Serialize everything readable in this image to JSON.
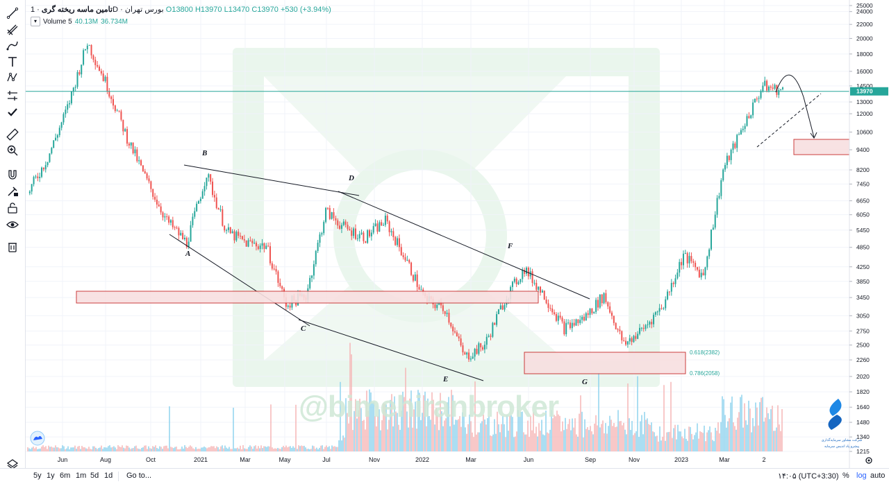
{
  "header": {
    "symbol": "تامین ماسه ریخته گری",
    "interval": "1D",
    "exchange": "بورس تهران",
    "ohlc": {
      "o": "O13800",
      "h": "H13970",
      "l": "L13470",
      "c": "C13970",
      "chg": "+530 (+3.94%)"
    }
  },
  "volume_row": {
    "label": "Volume 5",
    "v1": "40.13M",
    "v2": "36.734M"
  },
  "colors": {
    "up": "#26a69a",
    "down": "#ef5350",
    "last_price": "#26a69a",
    "zone_fill": "#f8dfe0",
    "zone_stroke": "#c62828"
  },
  "toolbar": {
    "icons": [
      "trend-line-icon",
      "pitchfork-icon",
      "brush-icon",
      "text-icon",
      "pattern-icon",
      "measure-icon",
      "check-icon",
      "ruler-icon",
      "zoom-in-icon",
      "magnet-icon",
      "lock-drawing-icon",
      "unlock-icon",
      "eye-icon",
      "trash-icon",
      "layers-icon"
    ]
  },
  "bottombar": {
    "ranges": [
      "5y",
      "1y",
      "6m",
      "1m",
      "5d",
      "1d"
    ],
    "goto": "Go to...",
    "time": "۱۴:۰۵ (UTC+3:30)",
    "percent": "%",
    "log": "log",
    "auto": "auto"
  },
  "watermark": "@bimehiranbroker",
  "logo_text": [
    "شرکت مشاور سرمایه‌گذاری",
    "پیشرو پاد اندیس سرمایه"
  ],
  "chart_data": {
    "type": "candlestick",
    "scale": "log",
    "ylim": [
      1215,
      25000
    ],
    "y_ticks": [
      25000,
      24000,
      22000,
      20000,
      18000,
      16000,
      14500,
      13000,
      12000,
      10600,
      9400,
      8200,
      7450,
      6650,
      6050,
      5450,
      4850,
      4250,
      3850,
      3450,
      3050,
      2750,
      2500,
      2260,
      2020,
      1820,
      1640,
      1480,
      1340,
      1215
    ],
    "x_ticks": [
      "Jun",
      "Aug",
      "Oct",
      "2021",
      "Mar",
      "May",
      "Jul",
      "Nov",
      "2022",
      "Mar",
      "Jun",
      "Sep",
      "Nov",
      "2023",
      "Mar",
      "2"
    ],
    "last_price": 13970,
    "price_path": [
      {
        "t": "Apr 2020",
        "price": 7000
      },
      {
        "t": "May 2020",
        "price": 8900
      },
      {
        "t": "Jun 2020",
        "price": 12500
      },
      {
        "t": "Jul 2020",
        "price": 19500
      },
      {
        "t": "Aug 2020",
        "price": 14500
      },
      {
        "t": "Sep 2020",
        "price": 10200
      },
      {
        "t": "Oct 2020",
        "price": 7600
      },
      {
        "t": "Nov 2020",
        "price": 5800
      },
      {
        "t": "Dec 2020",
        "price": 5000
      },
      {
        "t": "Jan 2021",
        "price": 8000
      },
      {
        "t": "Feb 2021",
        "price": 5400
      },
      {
        "t": "Mar 2021",
        "price": 5000
      },
      {
        "t": "Apr 2021",
        "price": 4900
      },
      {
        "t": "May 2021",
        "price": 3300
      },
      {
        "t": "Jun 2021",
        "price": 3500
      },
      {
        "t": "Jul 2021",
        "price": 6200
      },
      {
        "t": "Aug 2021",
        "price": 5500
      },
      {
        "t": "Sep 2021",
        "price": 5200
      },
      {
        "t": "Oct 2021",
        "price": 5800
      },
      {
        "t": "Nov 2021",
        "price": 4500
      },
      {
        "t": "Dec 2021",
        "price": 3400
      },
      {
        "t": "Jan 2022",
        "price": 3200
      },
      {
        "t": "Feb 2022",
        "price": 2300
      },
      {
        "t": "Mar 2022",
        "price": 2500
      },
      {
        "t": "Apr 2022",
        "price": 3400
      },
      {
        "t": "May 2022",
        "price": 4200
      },
      {
        "t": "Jun 2022",
        "price": 3500
      },
      {
        "t": "Jul 2022",
        "price": 2800
      },
      {
        "t": "Aug 2022",
        "price": 3000
      },
      {
        "t": "Sep 2022",
        "price": 3500
      },
      {
        "t": "Oct 2022",
        "price": 2500
      },
      {
        "t": "Nov 2022",
        "price": 2800
      },
      {
        "t": "Dec 2022",
        "price": 3300
      },
      {
        "t": "Jan 2023",
        "price": 4600
      },
      {
        "t": "Feb 2023",
        "price": 4000
      },
      {
        "t": "Mar 2023",
        "price": 8200
      },
      {
        "t": "Apr 2023",
        "price": 11000
      },
      {
        "t": "May 2023",
        "price": 14500
      },
      {
        "t": "May 2023",
        "price": 13970
      }
    ],
    "annotations": {
      "wave_labels": [
        "A",
        "B",
        "C",
        "D",
        "E",
        "F",
        "G"
      ],
      "fib_levels": [
        {
          "label": "0.618(2382)",
          "value": 2382
        },
        {
          "label": "0.786(2058)",
          "value": 2058
        }
      ]
    }
  }
}
